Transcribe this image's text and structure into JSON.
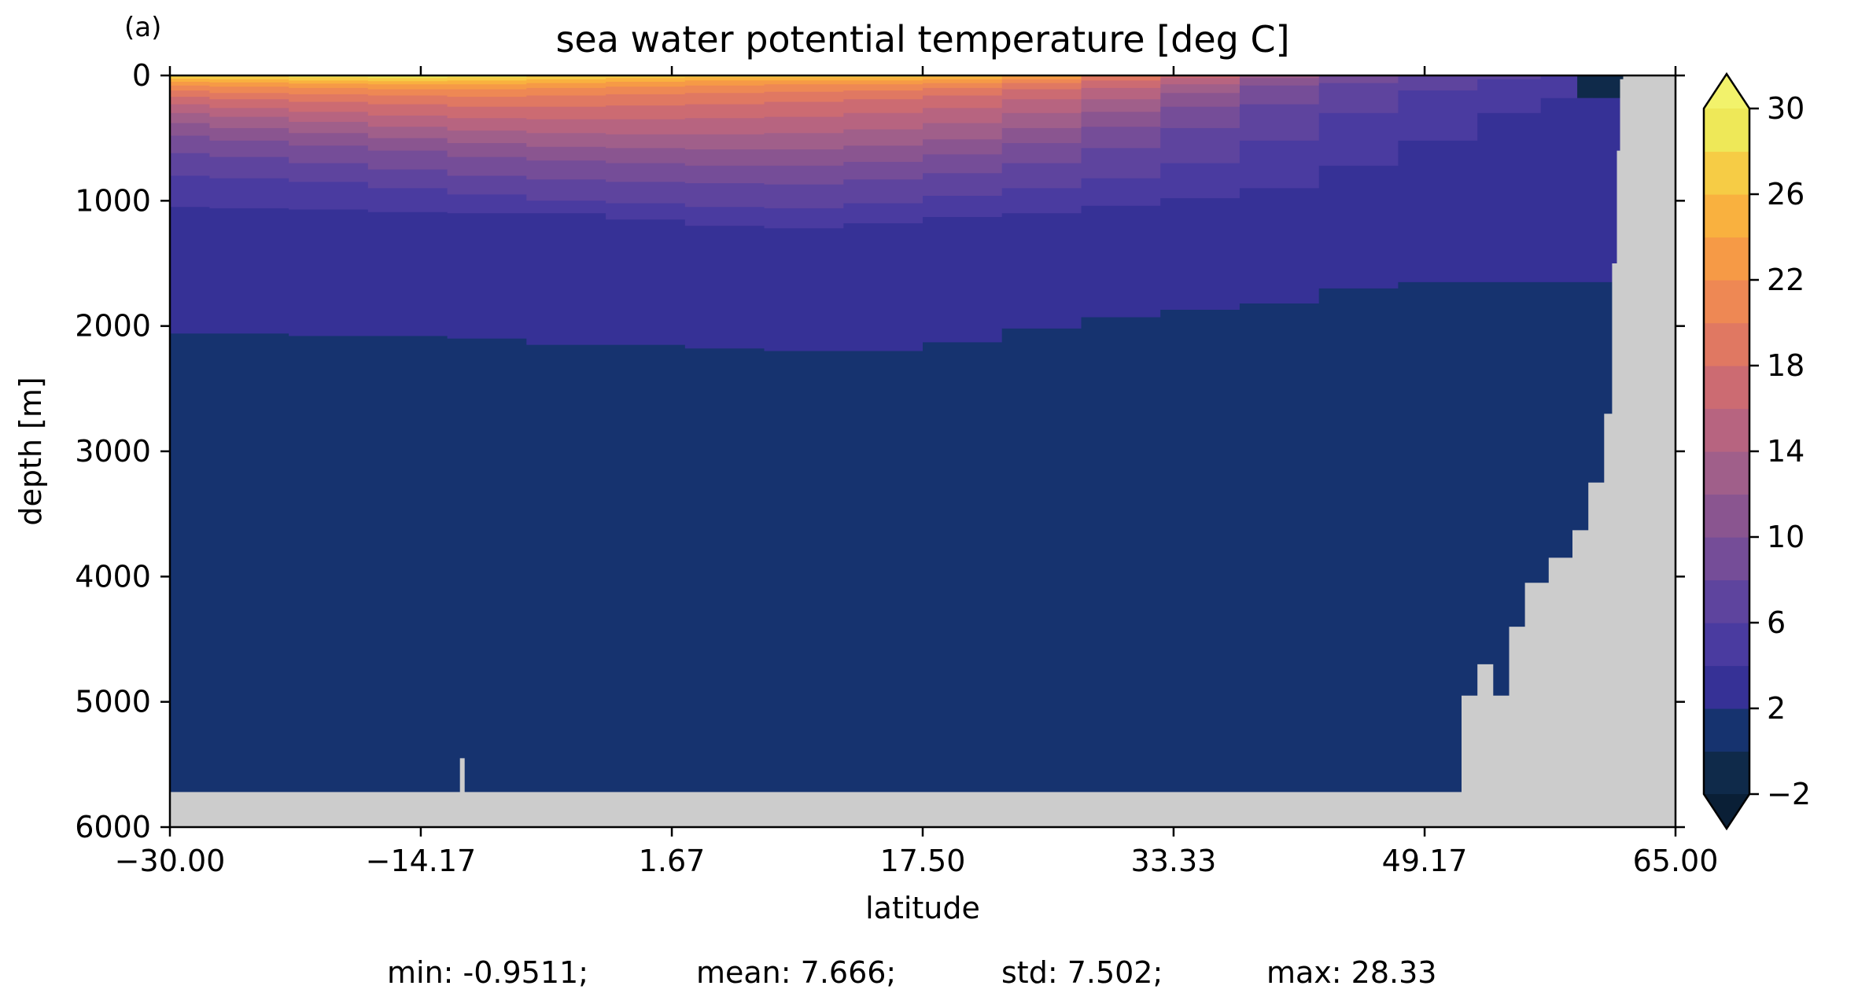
{
  "chart_data": {
    "type": "heatmap",
    "panel_label": "(a)",
    "title": "sea water potential temperature [deg C]",
    "xlabel": "latitude",
    "ylabel": "depth [m]",
    "xlim": [
      -30.0,
      65.0
    ],
    "ylim": [
      6000,
      0
    ],
    "y_inverted": true,
    "x_ticks": [
      -30.0,
      -14.17,
      1.67,
      17.5,
      33.33,
      49.17,
      65.0
    ],
    "x_tick_labels": [
      "−30.00",
      "−14.17",
      "1.67",
      "17.50",
      "33.33",
      "49.17",
      "65.00"
    ],
    "y_ticks": [
      0,
      1000,
      2000,
      3000,
      4000,
      5000,
      6000
    ],
    "y_tick_labels": [
      "0",
      "1000",
      "2000",
      "3000",
      "4000",
      "5000",
      "6000"
    ],
    "colorbar": {
      "levels": [
        -2,
        0,
        2,
        4,
        6,
        8,
        10,
        12,
        14,
        16,
        18,
        20,
        22,
        24,
        26,
        28,
        30
      ],
      "tick_values": [
        -2,
        2,
        6,
        10,
        14,
        18,
        22,
        26,
        30
      ],
      "tick_labels": [
        "−2",
        "2",
        "6",
        "10",
        "14",
        "18",
        "22",
        "26",
        "30"
      ],
      "colors": [
        "#0f2a4a",
        "#16336f",
        "#363196",
        "#4a3ba0",
        "#5e449e",
        "#754d98",
        "#8a5590",
        "#a05f8a",
        "#b76480",
        "#cc6b72",
        "#e07862",
        "#ee8854",
        "#f69a46",
        "#f9b13f",
        "#f6cc45",
        "#eee858"
      ],
      "under_color": "#0a1f36",
      "over_color": "#f2f26b",
      "extend": "both"
    },
    "land_color": "#cccccc",
    "bathymetry": {
      "lat": [
        -30,
        -12,
        -11.7,
        -11.4,
        50.5,
        51.5,
        52.5,
        53.5,
        54.5,
        55.5,
        57,
        58.5,
        59.5,
        60.5,
        61,
        61.3,
        61.5,
        61.7,
        65
      ],
      "max_depth": [
        5720,
        5720,
        5450,
        5720,
        5720,
        4950,
        4700,
        4950,
        4400,
        4050,
        3850,
        3630,
        3250,
        2700,
        1500,
        600,
        30,
        0,
        0
      ]
    },
    "isotherms": {
      "lat": [
        -30,
        -25,
        -20,
        -15,
        -10,
        -5,
        0,
        5,
        10,
        15,
        20,
        25,
        30,
        35,
        40,
        45,
        50,
        55,
        58,
        61.6
      ],
      "depth_2C": [
        2060,
        2060,
        2080,
        2080,
        2100,
        2150,
        2150,
        2180,
        2200,
        2200,
        2130,
        2020,
        1930,
        1870,
        1820,
        1700,
        1650,
        1650,
        1650,
        1650
      ],
      "depth_4C": [
        1050,
        1060,
        1070,
        1090,
        1100,
        1100,
        1150,
        1200,
        1220,
        1180,
        1130,
        1100,
        1040,
        980,
        900,
        720,
        520,
        300,
        180,
        80
      ],
      "depth_6C": [
        800,
        820,
        850,
        900,
        950,
        1000,
        1020,
        1050,
        1060,
        1020,
        960,
        900,
        820,
        700,
        520,
        300,
        120,
        30,
        0,
        0
      ],
      "depth_8C": [
        620,
        650,
        700,
        750,
        800,
        830,
        850,
        860,
        870,
        830,
        780,
        700,
        580,
        420,
        230,
        60,
        0,
        0,
        0,
        0
      ],
      "depth_10C": [
        480,
        520,
        560,
        600,
        650,
        680,
        700,
        720,
        720,
        690,
        630,
        540,
        410,
        250,
        80,
        0,
        0,
        0,
        0,
        0
      ],
      "depth_12C": [
        380,
        420,
        460,
        500,
        540,
        570,
        580,
        590,
        590,
        560,
        510,
        420,
        290,
        140,
        20,
        0,
        0,
        0,
        0,
        0
      ],
      "depth_14C": [
        300,
        330,
        370,
        410,
        440,
        460,
        470,
        470,
        460,
        430,
        380,
        300,
        190,
        70,
        0,
        0,
        0,
        0,
        0,
        0
      ],
      "depth_16C": [
        230,
        260,
        290,
        320,
        340,
        350,
        350,
        340,
        330,
        300,
        260,
        190,
        100,
        20,
        0,
        0,
        0,
        0,
        0,
        0
      ],
      "depth_18C": [
        170,
        190,
        210,
        230,
        250,
        250,
        240,
        230,
        210,
        190,
        160,
        110,
        40,
        0,
        0,
        0,
        0,
        0,
        0,
        0
      ],
      "depth_20C": [
        120,
        140,
        150,
        160,
        170,
        160,
        150,
        140,
        130,
        120,
        100,
        60,
        10,
        0,
        0,
        0,
        0,
        0,
        0,
        0
      ],
      "depth_22C": [
        80,
        90,
        100,
        110,
        110,
        100,
        90,
        80,
        70,
        70,
        60,
        30,
        0,
        0,
        0,
        0,
        0,
        0,
        0,
        0
      ],
      "depth_24C": [
        50,
        55,
        65,
        70,
        70,
        60,
        50,
        40,
        40,
        40,
        30,
        10,
        0,
        0,
        0,
        0,
        0,
        0,
        0,
        0
      ],
      "depth_26C": [
        25,
        30,
        40,
        45,
        40,
        30,
        20,
        15,
        15,
        15,
        10,
        0,
        0,
        0,
        0,
        0,
        0,
        0,
        0,
        0
      ],
      "depth_28C": [
        0,
        5,
        15,
        20,
        15,
        5,
        0,
        0,
        0,
        0,
        0,
        0,
        0,
        0,
        0,
        0,
        0,
        0,
        0,
        0
      ]
    },
    "stats": {
      "min": "min: -0.9511;",
      "mean": "mean: 7.666;",
      "std": "std: 7.502;",
      "max": "max: 28.33"
    }
  }
}
